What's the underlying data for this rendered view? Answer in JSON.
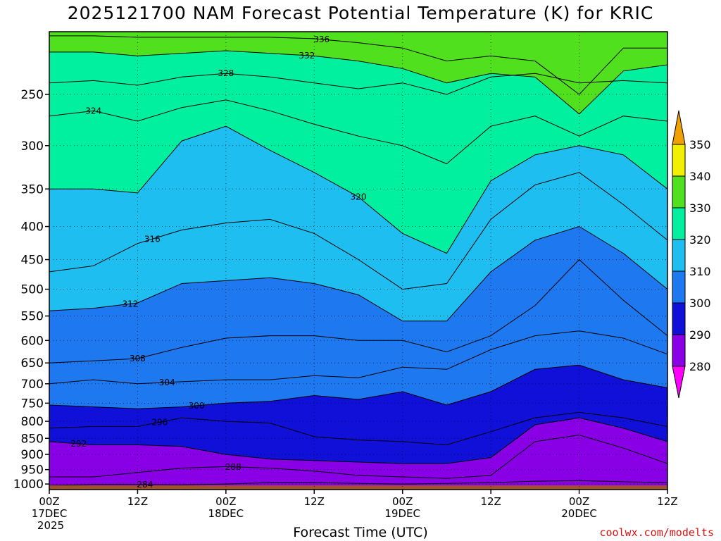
{
  "chart_data": {
    "type": "heatmap",
    "title": "2025121700 NAM Forecast Potential Temperature (K) for KRIC",
    "xlabel": "Forecast Time (UTC)",
    "ylabel": "",
    "credit": "coolwx.com/modelts",
    "units": "K",
    "x_ticks": [
      {
        "hour": 0,
        "lines": [
          "00Z",
          "17DEC",
          "2025"
        ]
      },
      {
        "hour": 12,
        "lines": [
          "12Z"
        ]
      },
      {
        "hour": 24,
        "lines": [
          "00Z",
          "18DEC"
        ]
      },
      {
        "hour": 36,
        "lines": [
          "12Z"
        ]
      },
      {
        "hour": 48,
        "lines": [
          "00Z",
          "19DEC"
        ]
      },
      {
        "hour": 60,
        "lines": [
          "12Z"
        ]
      },
      {
        "hour": 72,
        "lines": [
          "00Z",
          "20DEC"
        ]
      },
      {
        "hour": 84,
        "lines": [
          "12Z"
        ]
      }
    ],
    "xlim": [
      0,
      84
    ],
    "y_ticks": [
      250,
      300,
      350,
      400,
      450,
      500,
      550,
      600,
      650,
      700,
      750,
      800,
      850,
      900,
      950,
      1000
    ],
    "ylim_hPa": [
      200,
      1020
    ],
    "y_scale": "log",
    "colorbar": {
      "ticks": [
        280,
        290,
        300,
        310,
        320,
        330,
        340,
        350
      ],
      "bins": [
        {
          "from": 270,
          "to": 280,
          "color": "#ff00ff"
        },
        {
          "from": 280,
          "to": 290,
          "color": "#8a00e6"
        },
        {
          "from": 290,
          "to": 300,
          "color": "#1010d8"
        },
        {
          "from": 300,
          "to": 310,
          "color": "#1e78f0"
        },
        {
          "from": 310,
          "to": 320,
          "color": "#1ebef0"
        },
        {
          "from": 320,
          "to": 330,
          "color": "#00f0a0"
        },
        {
          "from": 330,
          "to": 340,
          "color": "#50e01e"
        },
        {
          "from": 340,
          "to": 350,
          "color": "#f0f000"
        },
        {
          "from": 350,
          "to": 360,
          "color": "#f0a000"
        }
      ]
    },
    "ground_color": "#a0522d",
    "hours": [
      0,
      6,
      12,
      18,
      24,
      30,
      36,
      42,
      48,
      54,
      60,
      66,
      72,
      78,
      84
    ],
    "isentropes": [
      {
        "theta": 284,
        "label_at_hour": 13,
        "p": [
          1005,
          1002,
          1002,
          1003,
          1000,
          995,
          995,
          998,
          1000,
          998,
          995,
          990,
          988,
          992,
          995
        ]
      },
      {
        "theta": 288,
        "label_at_hour": 25,
        "p": [
          975,
          975,
          960,
          945,
          940,
          945,
          955,
          970,
          975,
          980,
          970,
          860,
          840,
          880,
          930
        ]
      },
      {
        "theta": 292,
        "label_at_hour": 4,
        "p": [
          860,
          870,
          870,
          875,
          900,
          915,
          920,
          925,
          930,
          930,
          910,
          810,
          790,
          820,
          860
        ]
      },
      {
        "theta": 296,
        "label_at_hour": 15,
        "p": [
          820,
          815,
          815,
          790,
          800,
          805,
          845,
          855,
          860,
          870,
          830,
          790,
          775,
          790,
          815
        ]
      },
      {
        "theta": 300,
        "label_at_hour": 20,
        "p": [
          755,
          760,
          765,
          760,
          750,
          745,
          730,
          740,
          720,
          755,
          720,
          665,
          655,
          690,
          710
        ]
      },
      {
        "theta": 304,
        "label_at_hour": 16,
        "p": [
          700,
          690,
          700,
          695,
          690,
          690,
          680,
          685,
          660,
          665,
          620,
          590,
          580,
          595,
          630
        ]
      },
      {
        "theta": 308,
        "label_at_hour": 12,
        "p": [
          650,
          645,
          640,
          615,
          595,
          590,
          590,
          600,
          600,
          625,
          590,
          530,
          450,
          520,
          590
        ]
      },
      {
        "theta": 312,
        "label_at_hour": 11,
        "p": [
          540,
          535,
          525,
          490,
          485,
          480,
          490,
          510,
          560,
          560,
          470,
          420,
          400,
          440,
          500
        ]
      },
      {
        "theta": 316,
        "label_at_hour": 14,
        "p": [
          470,
          460,
          425,
          405,
          395,
          390,
          410,
          450,
          500,
          490,
          390,
          345,
          330,
          370,
          420
        ]
      },
      {
        "theta": 320,
        "label_at_hour": 42,
        "p": [
          350,
          350,
          355,
          295,
          280,
          305,
          330,
          360,
          410,
          440,
          340,
          310,
          300,
          310,
          350
        ]
      },
      {
        "theta": 324,
        "label_at_hour": 6,
        "p": [
          270,
          265,
          275,
          262,
          255,
          265,
          278,
          290,
          300,
          320,
          280,
          270,
          290,
          270,
          275
        ]
      },
      {
        "theta": 328,
        "label_at_hour": 24,
        "p": [
          240,
          238,
          242,
          235,
          232,
          235,
          240,
          245,
          240,
          250,
          235,
          232,
          240,
          238,
          240
        ]
      },
      {
        "theta": 332,
        "label_at_hour": 35,
        "p": [
          215,
          215,
          218,
          216,
          214,
          216,
          218,
          222,
          228,
          240,
          232,
          235,
          268,
          230,
          225
        ]
      },
      {
        "theta": 336,
        "label_at_hour": 37,
        "p": [
          203,
          203,
          204,
          204,
          204,
          204,
          205,
          208,
          212,
          222,
          218,
          222,
          250,
          212,
          212
        ]
      }
    ]
  }
}
